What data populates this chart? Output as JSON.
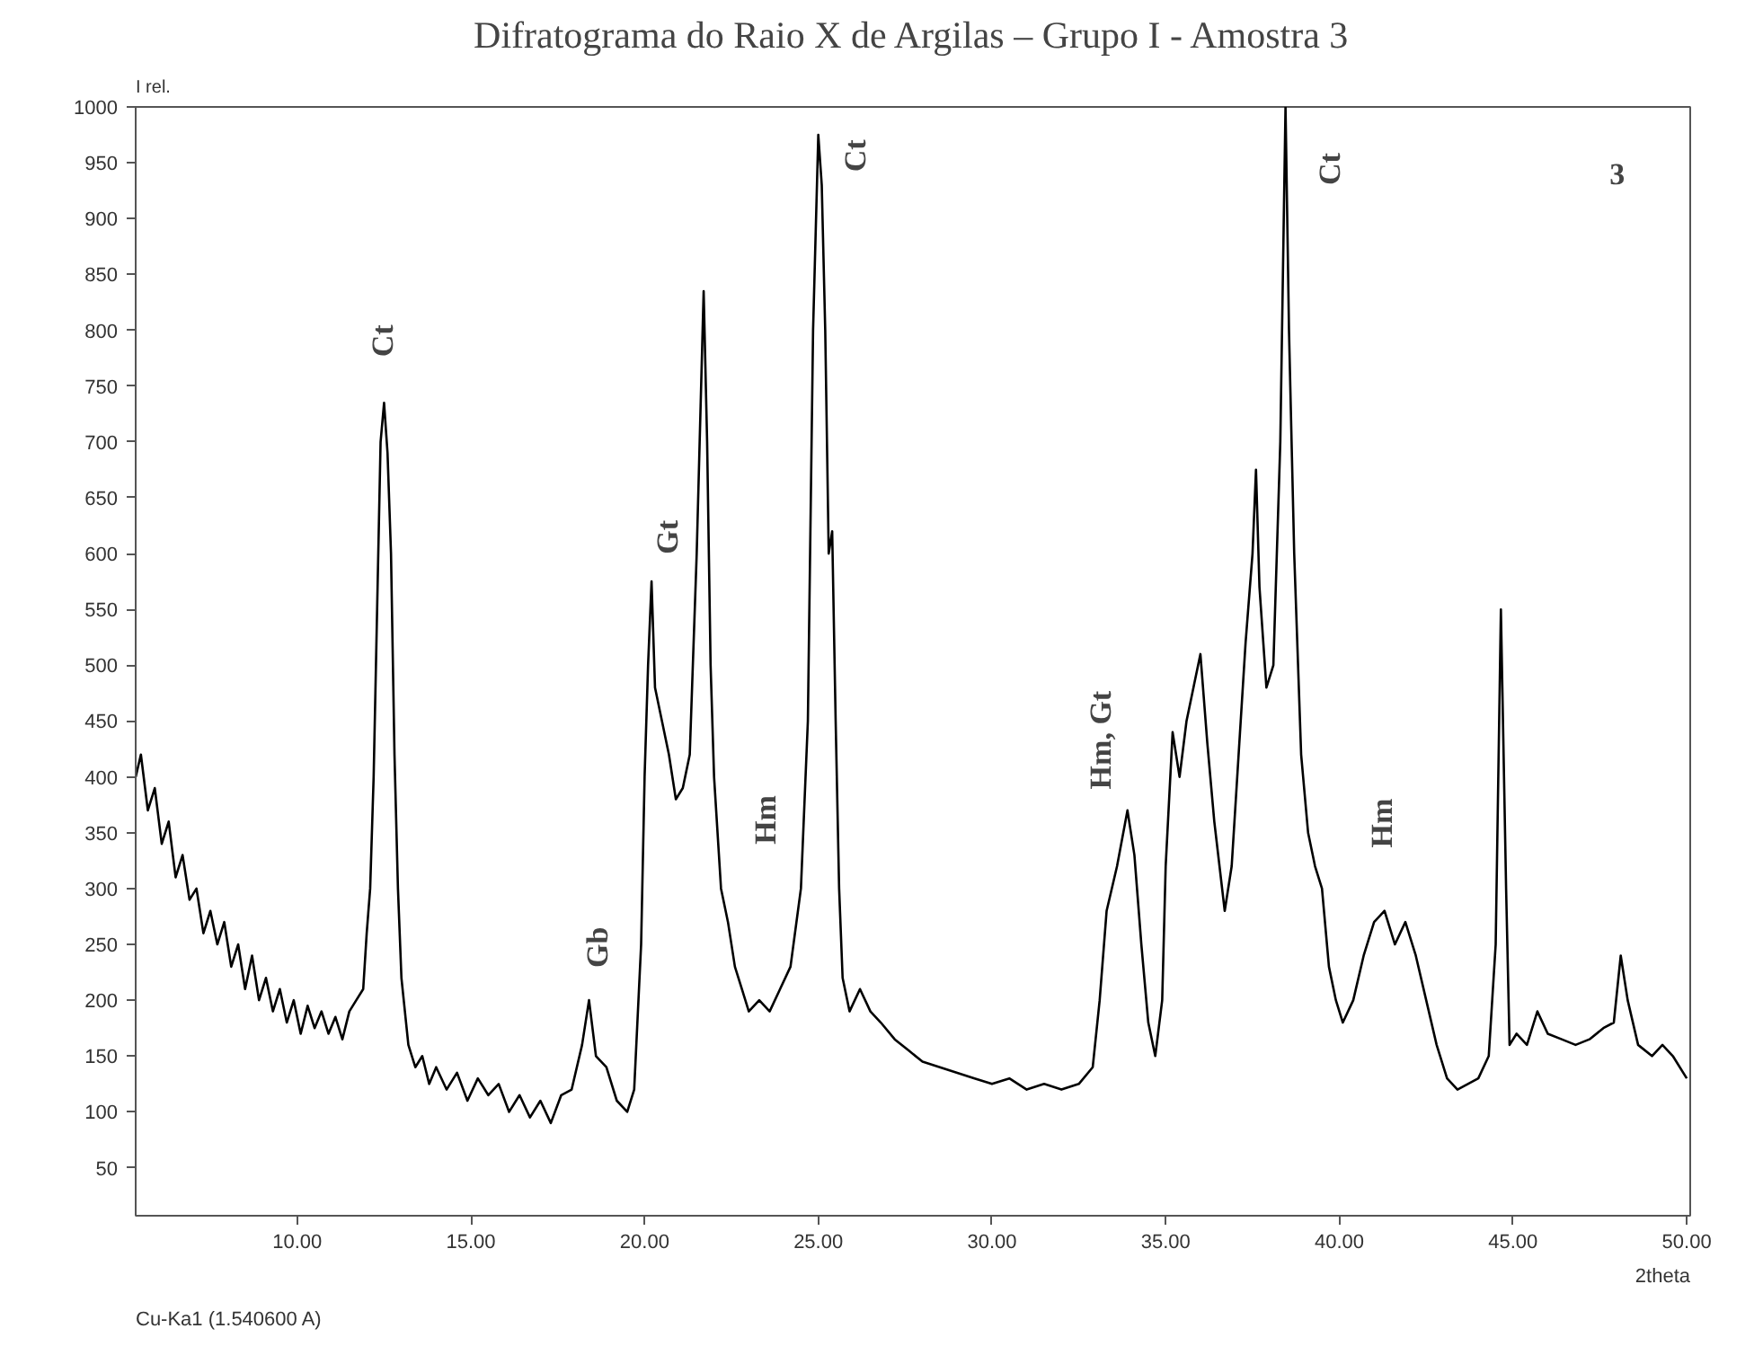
{
  "chart_data": {
    "type": "line",
    "title": "Difratograma do Raio X de Argilas – Grupo I - Amostra 3",
    "xlabel": "2theta",
    "ylabel": "I rel.",
    "x": [
      5.35,
      5.5,
      5.7,
      5.9,
      6.1,
      6.3,
      6.5,
      6.7,
      6.9,
      7.1,
      7.3,
      7.5,
      7.7,
      7.9,
      8.1,
      8.3,
      8.5,
      8.7,
      8.9,
      9.1,
      9.3,
      9.5,
      9.7,
      9.9,
      10.1,
      10.3,
      10.5,
      10.7,
      10.9,
      11.1,
      11.3,
      11.5,
      11.7,
      11.9,
      12.0,
      12.1,
      12.2,
      12.3,
      12.4,
      12.5,
      12.6,
      12.7,
      12.8,
      12.9,
      13.0,
      13.2,
      13.4,
      13.6,
      13.8,
      14.0,
      14.3,
      14.6,
      14.9,
      15.2,
      15.5,
      15.8,
      16.1,
      16.4,
      16.7,
      17.0,
      17.3,
      17.6,
      17.9,
      18.2,
      18.4,
      18.6,
      18.9,
      19.2,
      19.5,
      19.7,
      19.9,
      20.0,
      20.1,
      20.2,
      20.3,
      20.5,
      20.7,
      20.9,
      21.1,
      21.3,
      21.5,
      21.7,
      21.8,
      21.9,
      22.0,
      22.2,
      22.4,
      22.6,
      22.8,
      23.0,
      23.3,
      23.6,
      23.9,
      24.2,
      24.5,
      24.7,
      24.85,
      25.0,
      25.1,
      25.2,
      25.3,
      25.4,
      25.5,
      25.6,
      25.7,
      25.9,
      26.2,
      26.5,
      26.8,
      27.2,
      27.6,
      28.0,
      28.5,
      29.0,
      29.5,
      30.0,
      30.5,
      31.0,
      31.5,
      32.0,
      32.5,
      32.9,
      33.1,
      33.3,
      33.6,
      33.9,
      34.1,
      34.3,
      34.5,
      34.7,
      34.9,
      35.0,
      35.2,
      35.4,
      35.6,
      35.8,
      36.0,
      36.2,
      36.4,
      36.7,
      36.9,
      37.1,
      37.3,
      37.5,
      37.6,
      37.7,
      37.9,
      38.1,
      38.3,
      38.45,
      38.55,
      38.7,
      38.9,
      39.1,
      39.3,
      39.5,
      39.7,
      39.9,
      40.1,
      40.4,
      40.7,
      41.0,
      41.3,
      41.6,
      41.9,
      42.2,
      42.5,
      42.8,
      43.1,
      43.4,
      43.7,
      44.0,
      44.3,
      44.5,
      44.65,
      44.8,
      44.9,
      45.1,
      45.4,
      45.7,
      46.0,
      46.4,
      46.8,
      47.2,
      47.6,
      47.9,
      48.1,
      48.3,
      48.6,
      49.0,
      49.3,
      49.6,
      50.0
    ],
    "series": [
      {
        "color": "#000000",
        "values": [
          400,
          420,
          370,
          390,
          340,
          360,
          310,
          330,
          290,
          300,
          260,
          280,
          250,
          270,
          230,
          250,
          210,
          240,
          200,
          220,
          190,
          210,
          180,
          200,
          170,
          195,
          175,
          190,
          170,
          185,
          165,
          190,
          200,
          210,
          260,
          300,
          400,
          550,
          700,
          735,
          690,
          600,
          420,
          300,
          220,
          160,
          140,
          150,
          125,
          140,
          120,
          135,
          110,
          130,
          115,
          125,
          100,
          115,
          95,
          110,
          90,
          115,
          120,
          160,
          200,
          150,
          140,
          110,
          100,
          120,
          250,
          400,
          500,
          575,
          480,
          450,
          420,
          380,
          390,
          420,
          600,
          835,
          700,
          500,
          400,
          300,
          270,
          230,
          210,
          190,
          200,
          190,
          210,
          230,
          300,
          450,
          800,
          975,
          930,
          800,
          600,
          620,
          450,
          300,
          220,
          190,
          210,
          190,
          180,
          165,
          155,
          145,
          140,
          135,
          130,
          125,
          130,
          120,
          125,
          120,
          125,
          140,
          200,
          280,
          320,
          370,
          330,
          250,
          180,
          150,
          200,
          320,
          440,
          400,
          450,
          480,
          510,
          430,
          360,
          280,
          320,
          420,
          520,
          600,
          675,
          570,
          480,
          500,
          700,
          1000,
          800,
          600,
          420,
          350,
          320,
          300,
          230,
          200,
          180,
          200,
          240,
          270,
          280,
          250,
          270,
          240,
          200,
          160,
          130,
          120,
          125,
          130,
          150,
          250,
          550,
          300,
          160,
          170,
          160,
          190,
          170,
          165,
          160,
          165,
          175,
          180,
          240,
          200,
          160,
          150,
          160,
          150,
          130
        ]
      }
    ],
    "xlim": [
      5.35,
      50.1
    ],
    "ylim": [
      7,
      1000
    ],
    "xticks": [
      {
        "value": 10,
        "label": "10.00"
      },
      {
        "value": 15,
        "label": "15.00"
      },
      {
        "value": 20,
        "label": "20.00"
      },
      {
        "value": 25,
        "label": "25.00"
      },
      {
        "value": 30,
        "label": "30.00"
      },
      {
        "value": 35,
        "label": "35.00"
      },
      {
        "value": 40,
        "label": "40.00"
      },
      {
        "value": 45,
        "label": "45.00"
      },
      {
        "value": 50,
        "label": "50.00"
      }
    ],
    "yticks": [
      50,
      100,
      150,
      200,
      250,
      300,
      350,
      400,
      450,
      500,
      550,
      600,
      650,
      700,
      750,
      800,
      850,
      900,
      950,
      1000
    ],
    "grid": false,
    "marker": "none",
    "line_style": "solid",
    "annotations": [
      "Ct",
      "Gb",
      "Gt",
      "Hm",
      "Ct",
      "Hm, Gt",
      "Ct",
      "Hm",
      "3",
      "Cu-Ka1 (1.540600 A)"
    ]
  }
}
